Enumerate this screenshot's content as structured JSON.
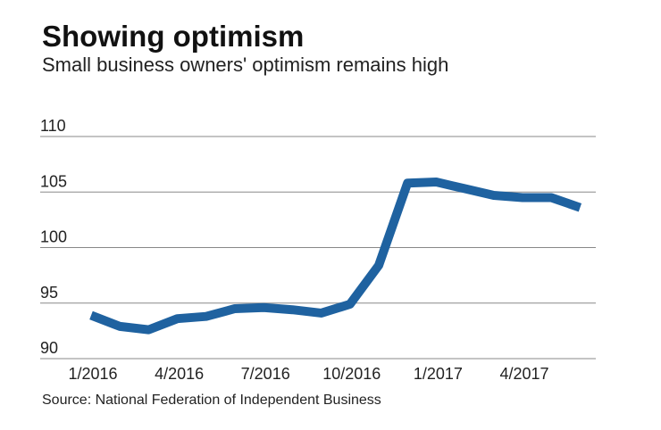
{
  "chart_data": {
    "type": "line",
    "title": "Showing optimism",
    "subtitle": "Small business owners' optimism remains high",
    "source": "Source: National Federation of Independent Business",
    "xlabel": "",
    "ylabel": "",
    "ylim": [
      90,
      110
    ],
    "yticks": [
      "90",
      "95",
      "100",
      "105",
      "110"
    ],
    "xticks": [
      "1/2016",
      "4/2016",
      "7/2016",
      "10/2016",
      "1/2017",
      "4/2017"
    ],
    "grid": true,
    "color": "#1f62a0",
    "x": [
      "1/2016",
      "2/2016",
      "3/2016",
      "4/2016",
      "5/2016",
      "6/2016",
      "7/2016",
      "8/2016",
      "9/2016",
      "10/2016",
      "11/2016",
      "12/2016",
      "1/2017",
      "2/2017",
      "3/2017",
      "4/2017",
      "5/2017",
      "6/2017"
    ],
    "values": [
      93.9,
      92.9,
      92.6,
      93.6,
      93.8,
      94.5,
      94.6,
      94.4,
      94.1,
      94.9,
      98.4,
      105.8,
      105.9,
      105.3,
      104.7,
      104.5,
      104.5,
      103.6
    ]
  }
}
